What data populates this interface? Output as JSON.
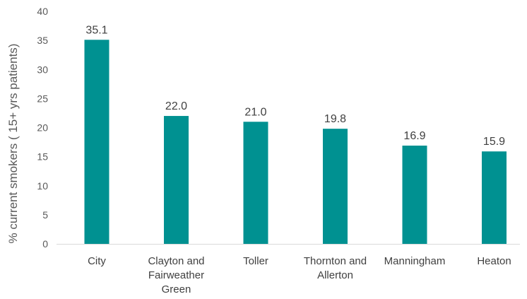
{
  "chart_data": {
    "type": "bar",
    "title": "",
    "ylabel": "% current smokers  ( 15+ yrs patients)",
    "xlabel": "",
    "categories": [
      [
        "City"
      ],
      [
        "Clayton and",
        "Fairweather",
        "Green"
      ],
      [
        "Toller"
      ],
      [
        "Thornton and",
        "Allerton"
      ],
      [
        "Manningham"
      ],
      [
        "Heaton"
      ]
    ],
    "values": [
      35.1,
      22.0,
      21.0,
      19.8,
      16.9,
      15.9
    ],
    "data_labels": [
      "35.1",
      "22.0",
      "21.0",
      "19.8",
      "16.9",
      "15.9"
    ],
    "ylim": [
      0,
      40
    ],
    "yticks": [
      0,
      5,
      10,
      15,
      20,
      25,
      30,
      35,
      40
    ],
    "grid": false,
    "legend": "none",
    "colors": {
      "bar": "#009191",
      "axis": "#d9d9d9",
      "text": "#404040"
    }
  }
}
